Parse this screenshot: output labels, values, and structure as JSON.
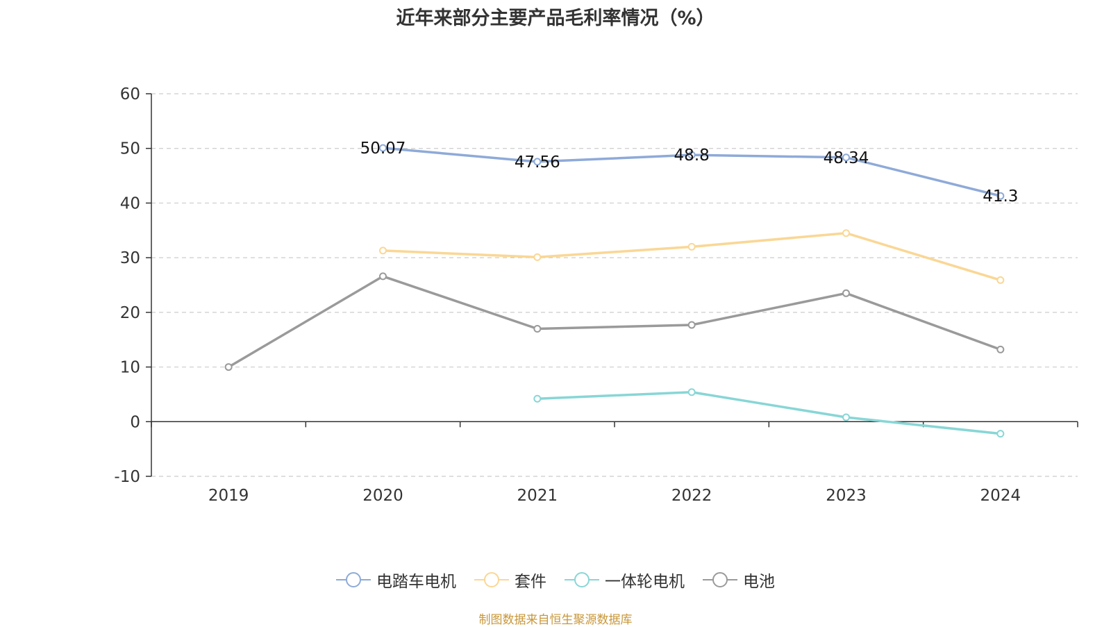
{
  "chart_data": {
    "type": "line",
    "title": "近年来部分主要产品毛利率情况（%）",
    "categories": [
      "2019",
      "2020",
      "2021",
      "2022",
      "2023",
      "2024"
    ],
    "ylim": [
      -10,
      60
    ],
    "yticks": [
      -10,
      0,
      10,
      20,
      30,
      40,
      50,
      60
    ],
    "grid": true,
    "legend_position": "bottom",
    "series": [
      {
        "name": "电踏车电机",
        "color": "#8eaad8",
        "values": [
          null,
          50.07,
          47.56,
          48.8,
          48.34,
          41.3
        ],
        "labels": [
          "",
          "50.07",
          "47.56",
          "48.8",
          "48.34",
          "41.3"
        ]
      },
      {
        "name": "套件",
        "color": "#fad795",
        "values": [
          null,
          31.3,
          30.1,
          32.0,
          34.5,
          25.9
        ]
      },
      {
        "name": "一体轮电机",
        "color": "#88d6d6",
        "values": [
          null,
          null,
          4.2,
          5.4,
          0.8,
          -2.2
        ]
      },
      {
        "name": "电池",
        "color": "#9a9a9a",
        "values": [
          10.0,
          26.6,
          17.0,
          17.7,
          23.5,
          13.2
        ]
      }
    ]
  },
  "source": "制图数据来自恒生聚源数据库"
}
